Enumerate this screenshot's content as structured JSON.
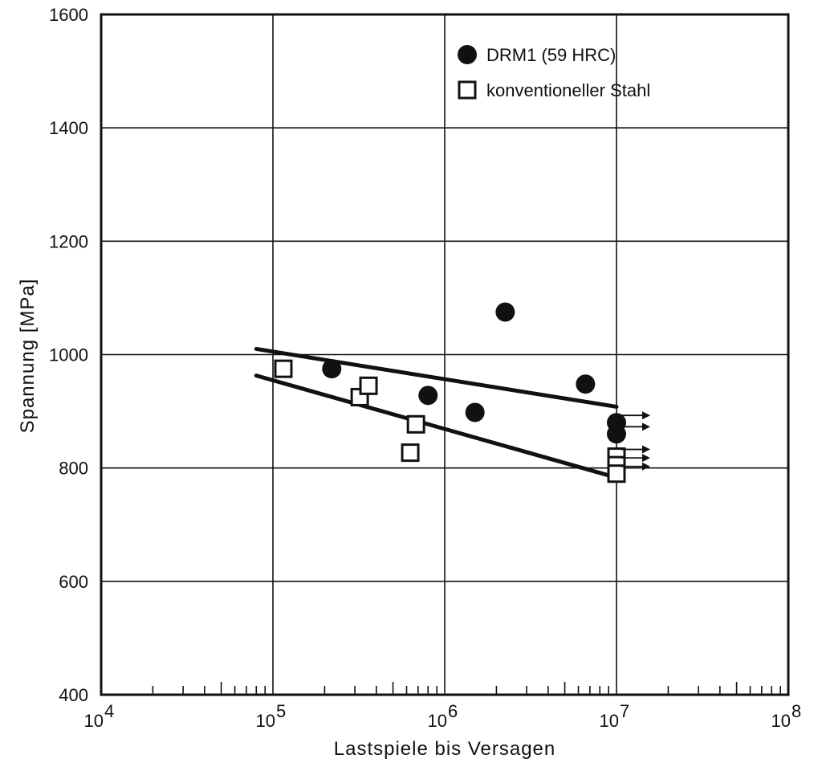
{
  "chart_data": {
    "type": "scatter",
    "x_scale": "log",
    "xlabel": "Lastspiele bis Versagen",
    "ylabel": "Spannung [MPa]",
    "xlim": [
      10000,
      100000000
    ],
    "ylim": [
      400,
      1600
    ],
    "grid": true,
    "legend_position": "top-right",
    "x_ticks": [
      {
        "value": 10000,
        "base": "10",
        "exp": "4"
      },
      {
        "value": 100000,
        "base": "10",
        "exp": "5"
      },
      {
        "value": 1000000,
        "base": "10",
        "exp": "6"
      },
      {
        "value": 10000000,
        "base": "10",
        "exp": "7"
      },
      {
        "value": 100000000,
        "base": "10",
        "exp": "8"
      }
    ],
    "y_ticks": [
      {
        "value": 400,
        "label": "400"
      },
      {
        "value": 600,
        "label": "600"
      },
      {
        "value": 800,
        "label": "800"
      },
      {
        "value": 1000,
        "label": "1000"
      },
      {
        "value": 1200,
        "label": "1200"
      },
      {
        "value": 1400,
        "label": "1400"
      },
      {
        "value": 1600,
        "label": "1600"
      }
    ],
    "series": [
      {
        "name": "DRM1 (59 HRC)",
        "marker": "filled-circle",
        "points": [
          {
            "x": 220000,
            "y": 975
          },
          {
            "x": 800000,
            "y": 928
          },
          {
            "x": 1500000,
            "y": 898
          },
          {
            "x": 2250000,
            "y": 1075
          },
          {
            "x": 6600000,
            "y": 948
          },
          {
            "x": 10000000,
            "y": 880,
            "runout": true
          },
          {
            "x": 10000000,
            "y": 860,
            "runout": true
          }
        ],
        "trend_line": [
          {
            "x": 80000,
            "y": 1010
          },
          {
            "x": 10000000,
            "y": 908
          }
        ]
      },
      {
        "name": "konventioneller Stahl",
        "marker": "open-square",
        "points": [
          {
            "x": 115000,
            "y": 975
          },
          {
            "x": 320000,
            "y": 925
          },
          {
            "x": 360000,
            "y": 945
          },
          {
            "x": 630000,
            "y": 827
          },
          {
            "x": 680000,
            "y": 877
          },
          {
            "x": 10000000,
            "y": 820,
            "runout": true
          },
          {
            "x": 10000000,
            "y": 805,
            "runout": true
          },
          {
            "x": 10000000,
            "y": 790,
            "runout": true
          }
        ],
        "trend_line": [
          {
            "x": 80000,
            "y": 963
          },
          {
            "x": 10000000,
            "y": 783
          }
        ]
      }
    ],
    "colors": {
      "ink": "#111111",
      "background": "#ffffff",
      "grid": "#111111"
    }
  }
}
